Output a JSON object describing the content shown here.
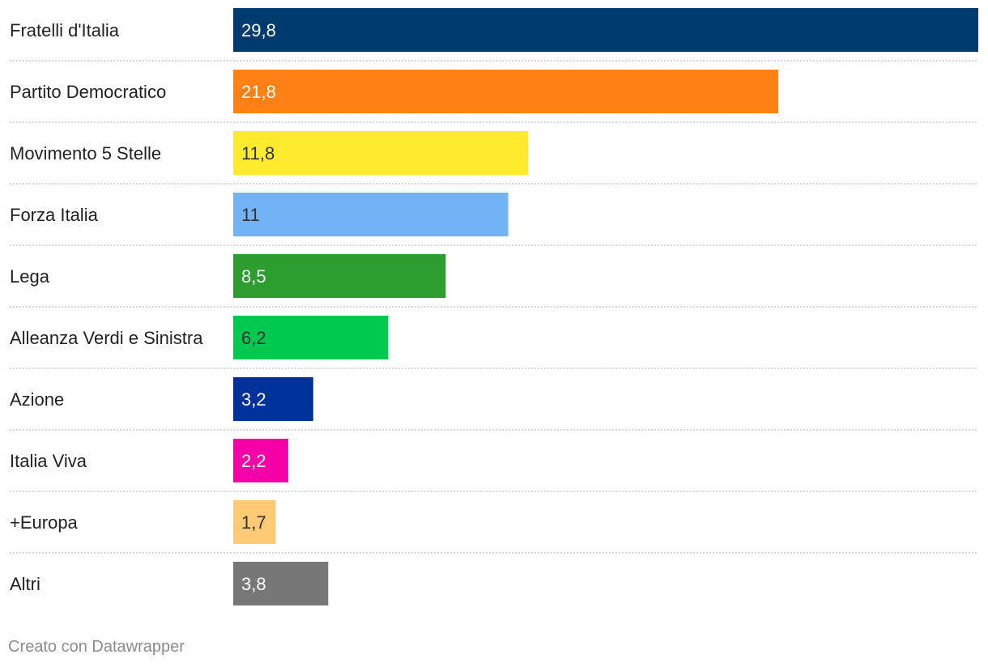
{
  "chart_data": {
    "type": "bar",
    "orientation": "horizontal",
    "categories": [
      "Fratelli d'Italia",
      "Partito Democratico",
      "Movimento 5 Stelle",
      "Forza Italia",
      "Lega",
      "Alleanza Verdi e Sinistra",
      "Azione",
      "Italia Viva",
      "+Europa",
      "Altri"
    ],
    "values": [
      29.8,
      21.8,
      11.8,
      11,
      8.5,
      6.2,
      3.2,
      2.2,
      1.7,
      3.8
    ],
    "value_labels": [
      "29,8",
      "21,8",
      "11,8",
      "11",
      "8,5",
      "6,2",
      "3,2",
      "2,2",
      "1,7",
      "3,8"
    ],
    "colors": [
      "#003b6f",
      "#ff8014",
      "#ffeb2e",
      "#72b3f5",
      "#2c9e2f",
      "#00c94f",
      "#00329b",
      "#f500a8",
      "#ffca76",
      "#777777"
    ],
    "label_colors": [
      "#ffffff",
      "#ffffff",
      "#333333",
      "#333333",
      "#ffffff",
      "#333333",
      "#ffffff",
      "#ffffff",
      "#333333",
      "#ffffff"
    ],
    "xlim": [
      0,
      29.8
    ],
    "title": "",
    "xlabel": "",
    "ylabel": ""
  },
  "footer": {
    "credit": "Creato con Datawrapper"
  }
}
